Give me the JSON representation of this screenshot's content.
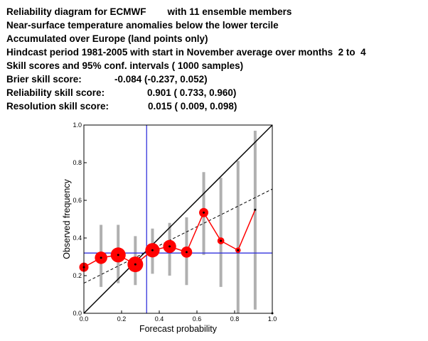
{
  "header": {
    "lines": [
      "Reliability diagram for ECMWF        with 11 ensemble members",
      "Near-surface temperature anomalies below the lower tercile",
      "Accumulated over Europe (land points only)",
      "Hindcast period 1981-2005 with start in November average over months  2 to  4",
      "Skill scores and 95% conf. intervals ( 1000 samples)"
    ],
    "scores": [
      {
        "label": "Brier skill score:",
        "value": "-0.084 (-0.237, 0.052)"
      },
      {
        "label": "Reliability skill score:",
        "value": "0.901 ( 0.733, 0.960)"
      },
      {
        "label": "Resolution skill score:",
        "value": "0.015 ( 0.009, 0.098)"
      }
    ]
  },
  "chart_data": {
    "type": "scatter",
    "title": "Reliability diagram for ECMWF        with 11 ensemble members",
    "xlabel": "Forecast probability",
    "ylabel": "Observed frequency",
    "xlim": [
      0,
      1
    ],
    "ylim": [
      0,
      1
    ],
    "xticks": [
      "0.0",
      "0.2",
      "0.4",
      "0.6",
      "0.8",
      "1.0"
    ],
    "yticks": [
      "0.0",
      "0.2",
      "0.4",
      "0.6",
      "0.8",
      "1.0"
    ],
    "grid": false,
    "climatology": {
      "x": 0.333,
      "y": 0.32
    },
    "diagonal": [
      [
        0,
        0
      ],
      [
        1,
        1
      ]
    ],
    "regression_line": [
      [
        0,
        0.16
      ],
      [
        1,
        0.66
      ]
    ],
    "points": [
      {
        "x": 0.0,
        "y": 0.245,
        "ci": null,
        "size": 0.5
      },
      {
        "x": 0.091,
        "y": 0.295,
        "ci": [
          0.14,
          0.47
        ],
        "size": 0.75
      },
      {
        "x": 0.182,
        "y": 0.31,
        "ci": [
          0.16,
          0.47
        ],
        "size": 0.95
      },
      {
        "x": 0.273,
        "y": 0.26,
        "ci": [
          0.15,
          0.41
        ],
        "size": 1.0
      },
      {
        "x": 0.364,
        "y": 0.335,
        "ci": [
          0.21,
          0.45
        ],
        "size": 0.9
      },
      {
        "x": 0.455,
        "y": 0.355,
        "ci": [
          0.2,
          0.48
        ],
        "size": 0.8
      },
      {
        "x": 0.545,
        "y": 0.325,
        "ci": [
          0.15,
          0.51
        ],
        "size": 0.65
      },
      {
        "x": 0.636,
        "y": 0.535,
        "ci": [
          0.31,
          0.75
        ],
        "size": 0.5
      },
      {
        "x": 0.727,
        "y": 0.385,
        "ci": [
          0.14,
          0.72
        ],
        "size": 0.32
      },
      {
        "x": 0.818,
        "y": 0.335,
        "ci": [
          0.0,
          0.81
        ],
        "size": 0.2
      },
      {
        "x": 0.909,
        "y": 0.55,
        "ci": [
          0.02,
          0.97
        ],
        "size": 0.06
      },
      {
        "x": 1.0,
        "y": 0.0,
        "ci": null,
        "size": 0.0
      }
    ]
  },
  "colors": {
    "diagonal": "#000000",
    "regression": "#000000",
    "climatology": "#3333dd",
    "curve": "#ff0000",
    "ci_bar": "#b0b0b0"
  }
}
